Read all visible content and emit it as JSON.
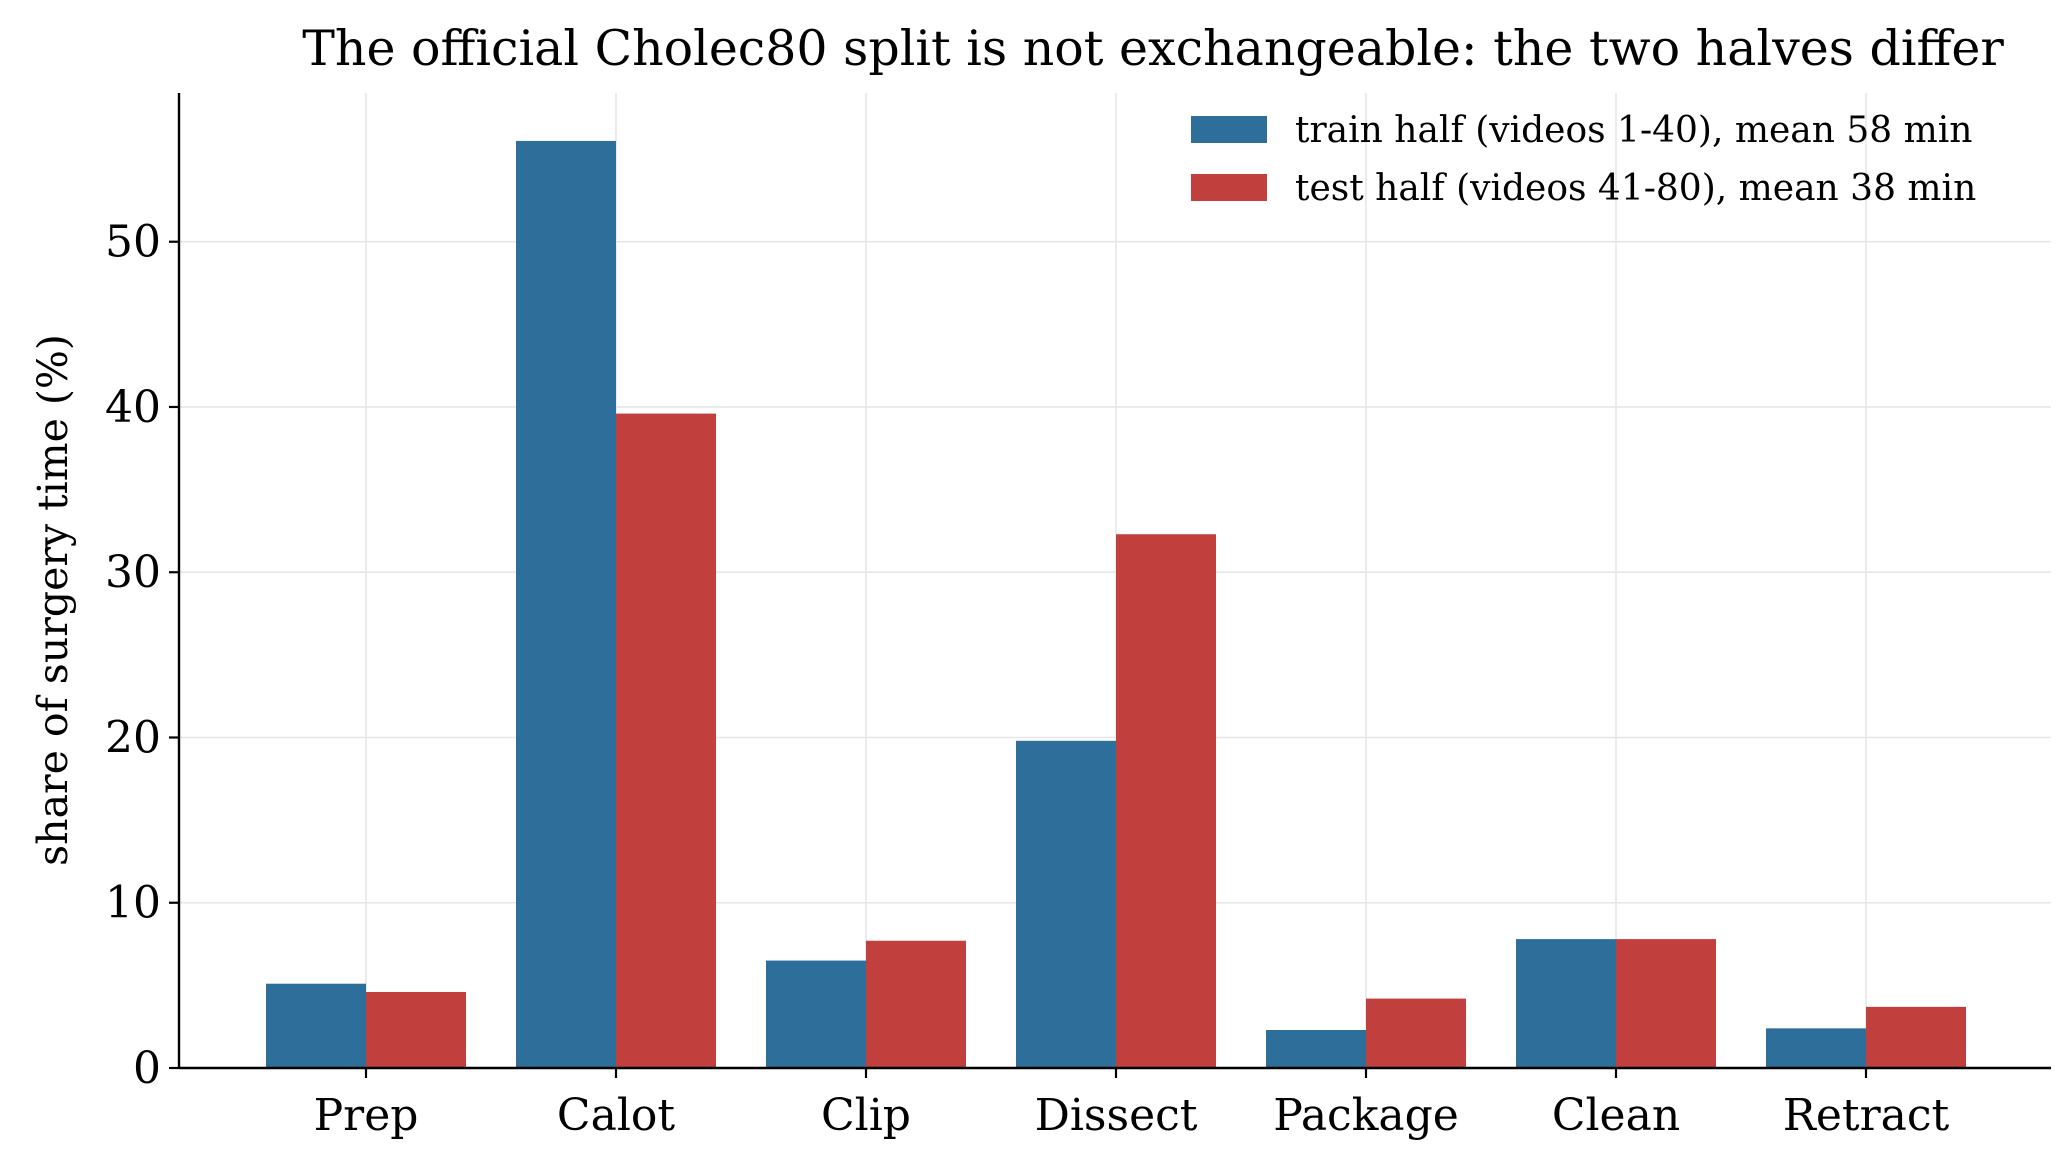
{
  "chart_data": {
    "type": "bar",
    "title": "The official Cholec80 split is not exchangeable: the two halves differ",
    "xlabel": "",
    "ylabel": "share of surgery time (%)",
    "categories": [
      "Prep",
      "Calot",
      "Clip",
      "Dissect",
      "Package",
      "Clean",
      "Retract"
    ],
    "series": [
      {
        "name": "train half (videos 1-40), mean 58 min",
        "color": "#2e6e9b",
        "values": [
          5.1,
          56.1,
          6.5,
          19.8,
          2.3,
          7.8,
          2.4
        ]
      },
      {
        "name": "test half (videos 41-80), mean 38 min",
        "color": "#c1403d",
        "values": [
          4.6,
          39.6,
          7.7,
          32.3,
          4.2,
          7.8,
          3.7
        ]
      }
    ],
    "ylim": [
      0,
      59
    ],
    "yticks": [
      0,
      10,
      20,
      30,
      40,
      50
    ],
    "grid": true,
    "legend_position": "top-right"
  }
}
